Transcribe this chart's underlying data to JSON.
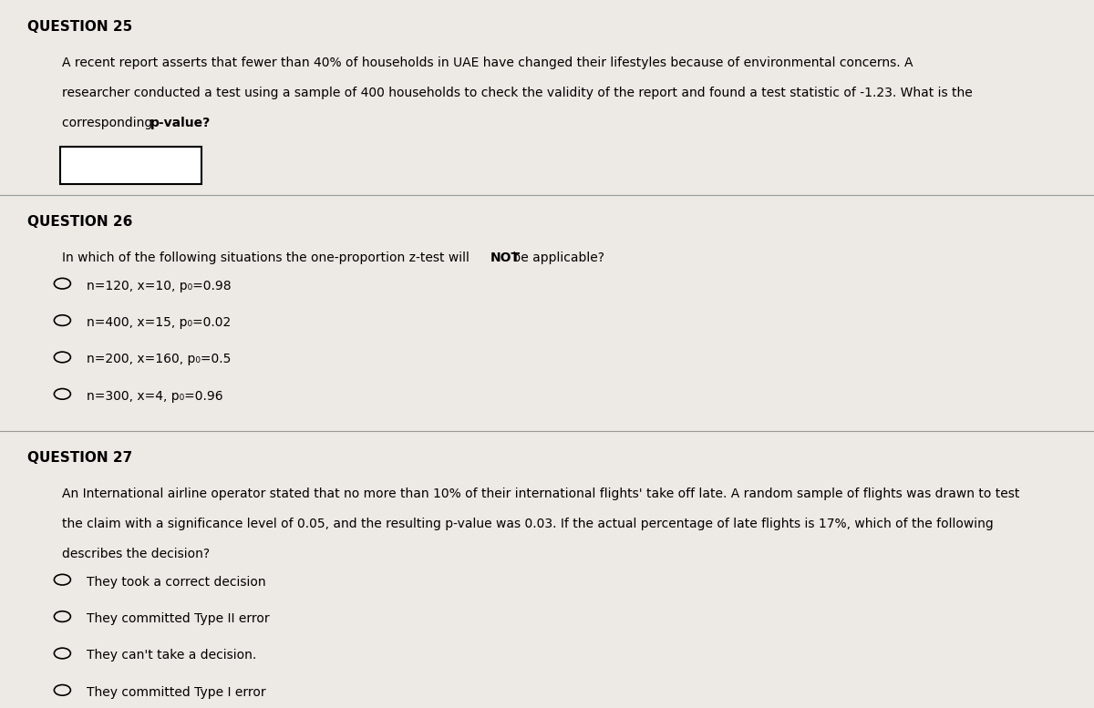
{
  "bg_color": "#ede9e4",
  "text_color": "#000000",
  "line_color": "#999999",
  "q25_header": "QUESTION 25",
  "q25_line1": "A recent report asserts that fewer than 40% of households in UAE have changed their lifestyles because of environmental concerns. A",
  "q25_line2": "researcher conducted a test using a sample of 400 households to check the validity of the report and found a test statistic of -1.23. What is the",
  "q25_line3_pre": "corresponding ",
  "q25_line3_bold": "p-value?",
  "q26_header": "QUESTION 26",
  "q26_pre": "In which of the following situations the one-proportion z-test will ",
  "q26_bold": "NOT",
  "q26_post": " be applicable?",
  "q26_options": [
    "n=120, x=10, p₀=0.98",
    "n=400, x=15, p₀=0.02",
    "n=200, x=160, p₀=0.5",
    "n=300, x=4, p₀=0.96"
  ],
  "q27_header": "QUESTION 27",
  "q27_line1": "An International airline operator stated that no more than 10% of their international flights' take off late. A random sample of flights was drawn to test",
  "q27_line2": "the claim with a significance level of 0.05, and the resulting p-value was 0.03. If the actual percentage of late flights is 17%, which of the following",
  "q27_line3": "describes the decision?",
  "q27_options": [
    "They took a correct decision",
    "They committed Type II error",
    "They can't take a decision.",
    "They committed Type I error"
  ],
  "header_fontsize": 11,
  "body_fontsize": 10,
  "option_fontsize": 10
}
